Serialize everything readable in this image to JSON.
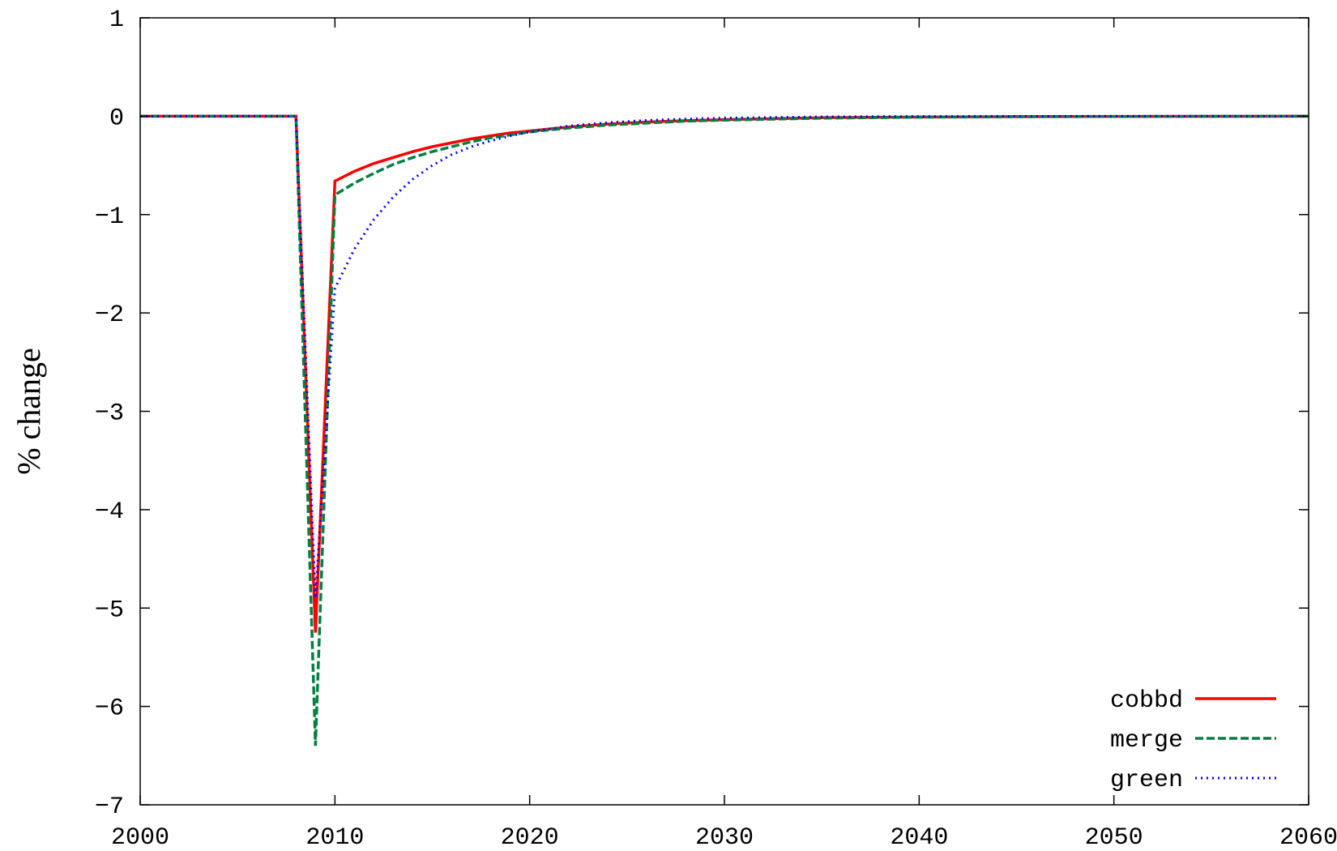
{
  "chart_data": {
    "type": "line",
    "title": "",
    "xlabel": "",
    "ylabel": "% change",
    "xlim": [
      2000,
      2060
    ],
    "ylim": [
      -7,
      1
    ],
    "x_ticks": [
      2000,
      2010,
      2020,
      2030,
      2040,
      2050,
      2060
    ],
    "y_ticks": [
      1,
      0,
      -1,
      -2,
      -3,
      -4,
      -5,
      -6,
      -7
    ],
    "grid": false,
    "legend_position": "bottom-right",
    "series": [
      {
        "name": "cobbd",
        "color": "#ff0000",
        "dash": "solid",
        "x": [
          2000,
          2008,
          2009,
          2010,
          2011,
          2012,
          2013,
          2014,
          2015,
          2016,
          2017,
          2018,
          2019,
          2020,
          2022,
          2024,
          2026,
          2028,
          2030,
          2035,
          2040,
          2045,
          2050,
          2055,
          2060
        ],
        "y": [
          0,
          0,
          -5.25,
          -0.66,
          -0.56,
          -0.48,
          -0.42,
          -0.36,
          -0.31,
          -0.27,
          -0.23,
          -0.2,
          -0.17,
          -0.15,
          -0.11,
          -0.08,
          -0.06,
          -0.045,
          -0.035,
          -0.015,
          -0.008,
          -0.004,
          -0.002,
          -0.001,
          0
        ]
      },
      {
        "name": "merge",
        "color": "#008040",
        "dash": "dashed",
        "x": [
          2000,
          2008,
          2009,
          2010,
          2011,
          2012,
          2013,
          2014,
          2015,
          2016,
          2017,
          2018,
          2019,
          2020,
          2022,
          2024,
          2026,
          2028,
          2030,
          2035,
          2040,
          2045,
          2050,
          2055,
          2060
        ],
        "y": [
          0,
          0,
          -6.4,
          -0.8,
          -0.68,
          -0.58,
          -0.49,
          -0.42,
          -0.36,
          -0.31,
          -0.26,
          -0.22,
          -0.19,
          -0.16,
          -0.12,
          -0.09,
          -0.07,
          -0.05,
          -0.04,
          -0.02,
          -0.01,
          -0.005,
          -0.003,
          -0.001,
          0
        ]
      },
      {
        "name": "green",
        "color": "#0000ff",
        "dash": "dotted",
        "x": [
          2000,
          2008,
          2009,
          2010,
          2011,
          2012,
          2013,
          2014,
          2015,
          2016,
          2017,
          2018,
          2019,
          2020,
          2022,
          2024,
          2026,
          2028,
          2030,
          2035,
          2040,
          2045,
          2050,
          2055,
          2060
        ],
        "y": [
          0,
          0,
          -4.9,
          -1.75,
          -1.35,
          -1.05,
          -0.82,
          -0.64,
          -0.5,
          -0.39,
          -0.31,
          -0.25,
          -0.2,
          -0.16,
          -0.1,
          -0.065,
          -0.042,
          -0.028,
          -0.018,
          -0.006,
          -0.002,
          -0.001,
          0,
          0,
          0
        ]
      }
    ]
  }
}
